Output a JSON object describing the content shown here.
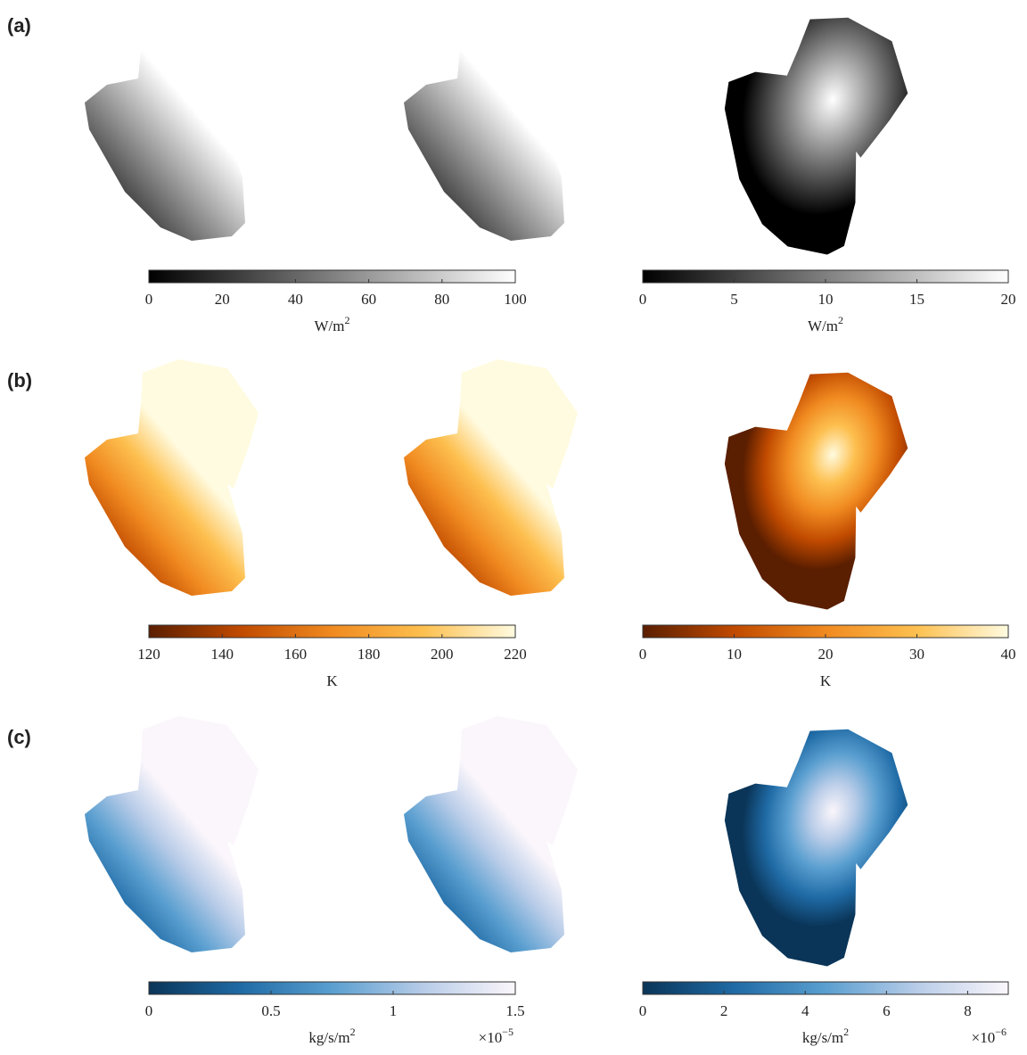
{
  "figure": {
    "rows": [
      {
        "label": "(a)",
        "colorbars": [
          {
            "lim": [
              0,
              100
            ],
            "ticks": [
              0,
              20,
              40,
              60,
              80,
              100
            ],
            "unit": "W/m",
            "unit_exponent": "2",
            "colormap": [
              "#000000",
              "#ffffff"
            ]
          },
          {
            "lim": [
              0,
              20
            ],
            "ticks": [
              0,
              5,
              10,
              15,
              20
            ],
            "unit": "W/m",
            "unit_exponent": "2",
            "colormap": [
              "#000000",
              "#ffffff"
            ]
          }
        ]
      },
      {
        "label": "(b)",
        "colorbars": [
          {
            "lim": [
              120,
              220
            ],
            "ticks": [
              120,
              140,
              160,
              180,
              200,
              220
            ],
            "unit": "K",
            "colormap": [
              "#5a1e00",
              "#c04a00",
              "#f08a20",
              "#fdc050",
              "#fffbe0"
            ]
          },
          {
            "lim": [
              0,
              40
            ],
            "ticks": [
              0,
              10,
              20,
              30,
              40
            ],
            "unit": "K",
            "colormap": [
              "#5a1e00",
              "#c04a00",
              "#f08a20",
              "#fdc050",
              "#fffbe0"
            ]
          }
        ]
      },
      {
        "label": "(c)",
        "colorbars": [
          {
            "lim": [
              0,
              1.5
            ],
            "ticks": [
              0,
              0.5,
              1,
              1.5
            ],
            "unit": "kg/s/m",
            "unit_exponent": "2",
            "multiplier": "×10",
            "multiplier_exponent": "−5",
            "colormap": [
              "#0a3558",
              "#1f6aa5",
              "#5a9fd0",
              "#b8cce8",
              "#fbf6fb"
            ]
          },
          {
            "lim": [
              0,
              9
            ],
            "ticks": [
              0,
              2,
              4,
              6,
              8
            ],
            "unit": "kg/s/m",
            "unit_exponent": "2",
            "multiplier": "×10",
            "multiplier_exponent": "−6",
            "colormap": [
              "#0a3558",
              "#1f6aa5",
              "#5a9fd0",
              "#b8cce8",
              "#fbf6fb"
            ]
          }
        ]
      }
    ]
  }
}
